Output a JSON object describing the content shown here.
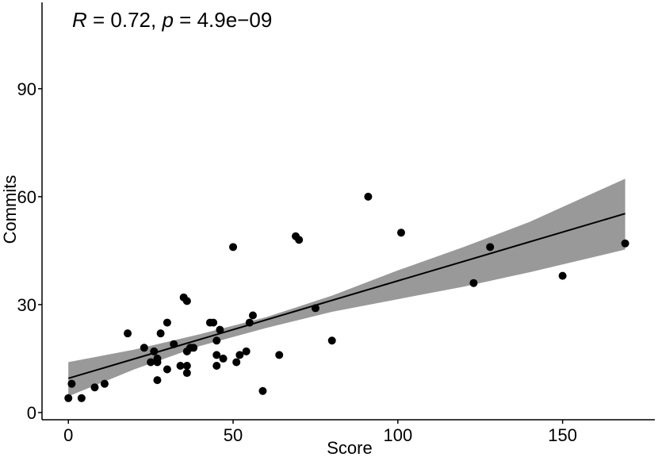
{
  "chart_data": {
    "type": "scatter",
    "title": "",
    "xlabel": "Score",
    "ylabel": "Commits",
    "xlim": [
      -8,
      178
    ],
    "ylim": [
      -2,
      114
    ],
    "x_ticks": [
      0,
      50,
      100,
      150
    ],
    "y_ticks": [
      0,
      30,
      60,
      90
    ],
    "annotation": {
      "r_symbol": "R",
      "r_text": " = 0.72, ",
      "p_symbol": "p",
      "p_text": " = 4.9e−09"
    },
    "colors": {
      "points": "#000000",
      "line": "#000000",
      "ribbon": "#999999"
    },
    "grid": false,
    "points": [
      {
        "x": 0,
        "y": 4
      },
      {
        "x": 1,
        "y": 8
      },
      {
        "x": 4,
        "y": 4
      },
      {
        "x": 8,
        "y": 7
      },
      {
        "x": 11,
        "y": 8
      },
      {
        "x": 18,
        "y": 22
      },
      {
        "x": 23,
        "y": 18
      },
      {
        "x": 25,
        "y": 14
      },
      {
        "x": 26,
        "y": 17
      },
      {
        "x": 27,
        "y": 15
      },
      {
        "x": 27,
        "y": 14
      },
      {
        "x": 27,
        "y": 9
      },
      {
        "x": 28,
        "y": 22
      },
      {
        "x": 30,
        "y": 25
      },
      {
        "x": 30,
        "y": 12
      },
      {
        "x": 32,
        "y": 19
      },
      {
        "x": 34,
        "y": 13
      },
      {
        "x": 35,
        "y": 32
      },
      {
        "x": 36,
        "y": 31
      },
      {
        "x": 36,
        "y": 17
      },
      {
        "x": 36,
        "y": 13
      },
      {
        "x": 36,
        "y": 11
      },
      {
        "x": 37,
        "y": 18
      },
      {
        "x": 38,
        "y": 18
      },
      {
        "x": 43,
        "y": 25
      },
      {
        "x": 44,
        "y": 25
      },
      {
        "x": 45,
        "y": 20
      },
      {
        "x": 45,
        "y": 16
      },
      {
        "x": 45,
        "y": 13
      },
      {
        "x": 46,
        "y": 23
      },
      {
        "x": 47,
        "y": 15
      },
      {
        "x": 50,
        "y": 46
      },
      {
        "x": 51,
        "y": 14
      },
      {
        "x": 52,
        "y": 16
      },
      {
        "x": 54,
        "y": 17
      },
      {
        "x": 55,
        "y": 25
      },
      {
        "x": 56,
        "y": 27
      },
      {
        "x": 59,
        "y": 6
      },
      {
        "x": 64,
        "y": 16
      },
      {
        "x": 69,
        "y": 49
      },
      {
        "x": 70,
        "y": 48
      },
      {
        "x": 75,
        "y": 29
      },
      {
        "x": 80,
        "y": 20
      },
      {
        "x": 91,
        "y": 60
      },
      {
        "x": 101,
        "y": 50
      },
      {
        "x": 123,
        "y": 36
      },
      {
        "x": 128,
        "y": 46
      },
      {
        "x": 150,
        "y": 38
      },
      {
        "x": 169,
        "y": 47
      }
    ],
    "regression_line": {
      "x": [
        0,
        169
      ],
      "y": [
        9.5,
        55.3
      ]
    },
    "confidence_band": {
      "x": [
        0,
        20,
        40,
        60,
        80,
        100,
        120,
        140,
        169
      ],
      "lower": [
        4.5,
        12.0,
        18.5,
        23.5,
        28.0,
        31.5,
        35.0,
        39.0,
        45.3
      ],
      "upper": [
        14.0,
        17.5,
        21.8,
        26.5,
        32.5,
        39.5,
        46.0,
        53.0,
        65.0
      ]
    }
  }
}
